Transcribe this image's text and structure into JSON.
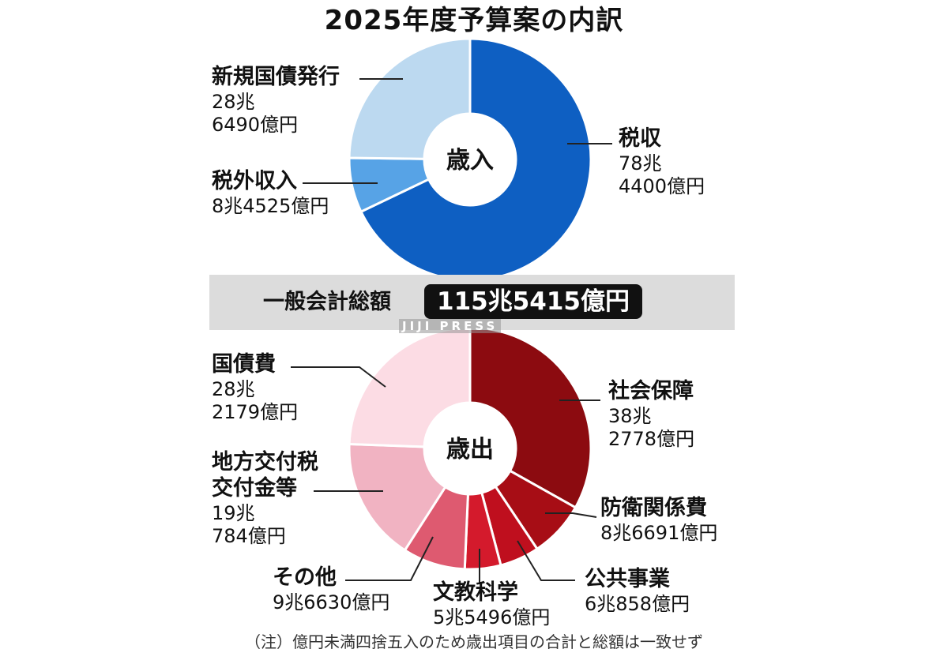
{
  "title": "2025年度予算案の内訳",
  "total": {
    "label": "一般会計総額",
    "value": "115兆5415億円"
  },
  "credit": "JIJI PRESS",
  "note": "（注）億円未満四捨五入のため歳出項目の合計と総額は一致せず",
  "chart_data": [
    {
      "type": "pie",
      "center_label": "歳入",
      "slices": [
        {
          "name": "税収",
          "value": 784400,
          "display": "78兆\n4400億円",
          "color": "#0e5fc2"
        },
        {
          "name": "税外収入",
          "value": 84525,
          "display": "8兆4525億円",
          "color": "#57a3e6"
        },
        {
          "name": "新規国債発行",
          "value": 286490,
          "display": "28兆\n6490億円",
          "color": "#bcd9f0"
        }
      ]
    },
    {
      "type": "pie",
      "center_label": "歳出",
      "slices": [
        {
          "name": "社会保障",
          "value": 382778,
          "display": "38兆\n2778億円",
          "color": "#8c0b10"
        },
        {
          "name": "防衛関係費",
          "value": 86691,
          "display": "8兆6691億円",
          "color": "#a70d15"
        },
        {
          "name": "公共事業",
          "value": 60858,
          "display": "6兆858億円",
          "color": "#bf0f1e"
        },
        {
          "name": "文教科学",
          "value": 55496,
          "display": "5兆5496億円",
          "color": "#d41a2c"
        },
        {
          "name": "その他",
          "value": 96630,
          "display": "9兆6630億円",
          "color": "#de5a70"
        },
        {
          "name": "地方交付税\n交付金等",
          "value": 190784,
          "display": "19兆\n784億円",
          "color": "#f1b3c2"
        },
        {
          "name": "国債費",
          "value": 282179,
          "display": "28兆\n2179億円",
          "color": "#fcdce4"
        }
      ]
    }
  ]
}
